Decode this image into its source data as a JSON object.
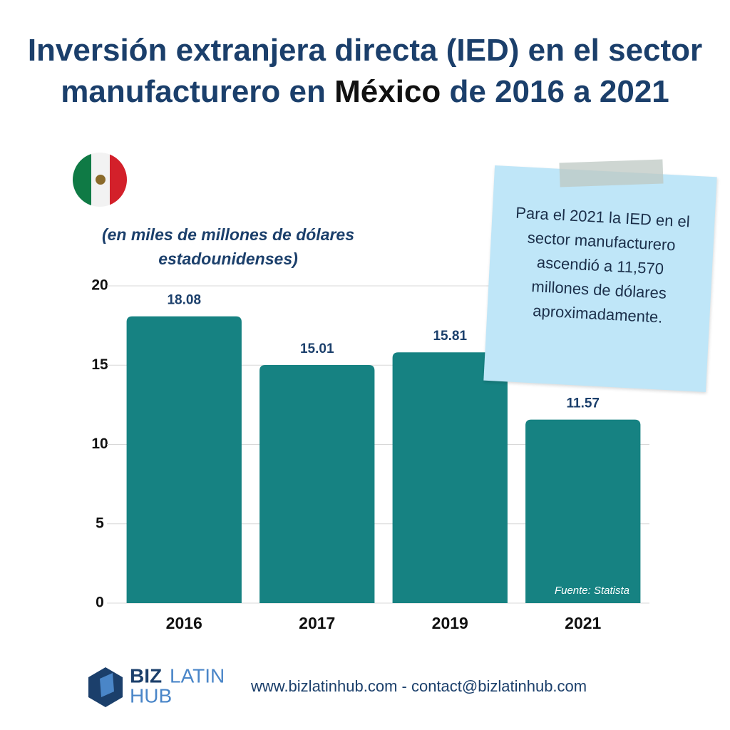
{
  "chart_data": {
    "type": "bar",
    "title": [
      "Inversión extranjera directa (IED) en el sector manufacturero en ",
      "México",
      " de 2016 a 2021"
    ],
    "subtitle": "(en miles de millones de dólares estadounidenses)",
    "categories": [
      "2016",
      "2017",
      "2019",
      "2021"
    ],
    "values": [
      18.08,
      15.01,
      15.81,
      11.57
    ],
    "color": "#168282",
    "ylim": [
      0,
      20
    ],
    "yticks": [
      0,
      5,
      10,
      15,
      20
    ],
    "grid": true,
    "annotation": "Para el 2021 la IED en el sector manufacturero ascendió a 11,570 millones de dólares aproximadamente.",
    "source": "Fuente: Statista",
    "footer": {
      "logo": [
        "BIZ",
        "LATIN",
        "HUB"
      ],
      "contact": "www.bizlatinhub.com - contact@bizlatinhub.com"
    }
  }
}
